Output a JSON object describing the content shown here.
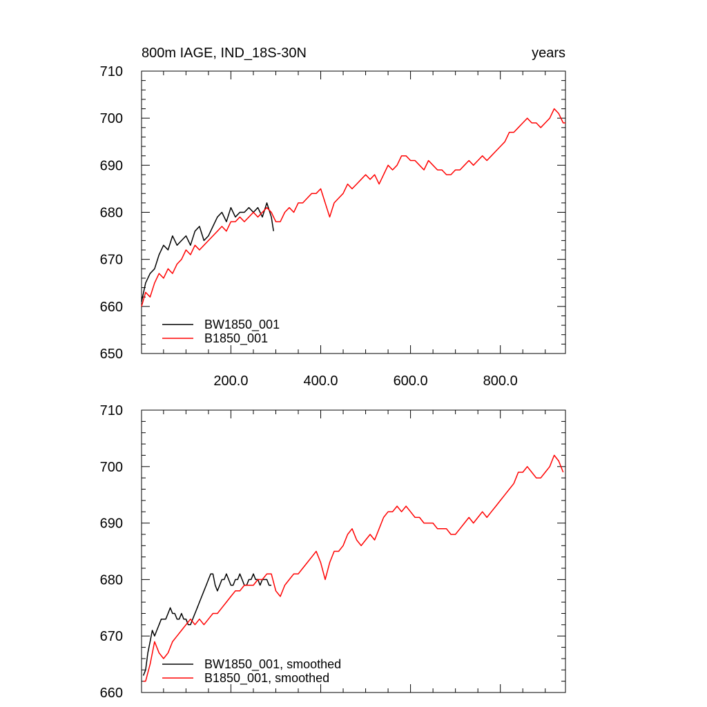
{
  "colors": {
    "BW1850_001": "#000000",
    "B1850_001": "#ff0000"
  },
  "chart_data": [
    {
      "type": "line",
      "title_left": "800m IAGE, IND_18S-30N",
      "title_right": "years",
      "xlim": [
        1,
        945
      ],
      "ylim": [
        650,
        710
      ],
      "x_ticks": [
        200,
        400,
        600,
        800
      ],
      "x_tick_labels": [
        "200.0",
        "400.0",
        "600.0",
        "800.0"
      ],
      "y_ticks": [
        650,
        660,
        670,
        680,
        690,
        700,
        710
      ],
      "y_tick_labels": [
        "650",
        "660",
        "670",
        "680",
        "690",
        "700",
        "710"
      ],
      "legend_position": "bottom-left",
      "grid": false,
      "series": [
        {
          "name": "BW1850_001",
          "color": "#000000",
          "x": [
            1,
            10,
            20,
            30,
            40,
            50,
            60,
            70,
            80,
            90,
            100,
            110,
            120,
            130,
            140,
            150,
            160,
            170,
            180,
            190,
            200,
            210,
            220,
            230,
            240,
            250,
            260,
            270,
            280,
            290,
            295
          ],
          "y": [
            661,
            665,
            667,
            668,
            671,
            673,
            672,
            675,
            673,
            674,
            675,
            673,
            676,
            677,
            674,
            675,
            677,
            679,
            680,
            678,
            681,
            679,
            680,
            680,
            681,
            680,
            681,
            679,
            682,
            679,
            676
          ]
        },
        {
          "name": "B1850_001",
          "color": "#ff0000",
          "x": [
            1,
            10,
            20,
            30,
            40,
            50,
            60,
            70,
            80,
            90,
            100,
            110,
            120,
            130,
            140,
            150,
            160,
            170,
            180,
            190,
            200,
            210,
            220,
            230,
            240,
            250,
            260,
            270,
            280,
            290,
            300,
            310,
            320,
            330,
            340,
            350,
            360,
            370,
            380,
            390,
            400,
            410,
            420,
            430,
            440,
            450,
            460,
            470,
            480,
            490,
            500,
            510,
            520,
            530,
            540,
            550,
            560,
            570,
            580,
            590,
            600,
            610,
            620,
            630,
            640,
            650,
            660,
            670,
            680,
            690,
            700,
            710,
            720,
            730,
            740,
            750,
            760,
            770,
            780,
            790,
            800,
            810,
            820,
            830,
            840,
            850,
            860,
            870,
            880,
            890,
            900,
            910,
            920,
            930,
            940,
            945
          ],
          "y": [
            660,
            663,
            662,
            665,
            667,
            666,
            668,
            667,
            669,
            670,
            672,
            671,
            673,
            672,
            673,
            674,
            675,
            676,
            677,
            676,
            678,
            678,
            679,
            678,
            679,
            680,
            679,
            680,
            681,
            680,
            678,
            678,
            680,
            681,
            680,
            682,
            682,
            683,
            684,
            684,
            685,
            682,
            679,
            682,
            683,
            684,
            686,
            685,
            686,
            687,
            688,
            687,
            688,
            686,
            688,
            690,
            689,
            690,
            692,
            692,
            691,
            691,
            690,
            689,
            691,
            690,
            689,
            689,
            688,
            688,
            689,
            689,
            690,
            691,
            690,
            691,
            692,
            691,
            692,
            693,
            694,
            695,
            697,
            697,
            698,
            699,
            700,
            699,
            699,
            698,
            699,
            700,
            702,
            701,
            699,
            699
          ]
        }
      ]
    },
    {
      "type": "line",
      "xlim": [
        1,
        945
      ],
      "ylim": [
        660,
        710
      ],
      "x_ticks": [
        200,
        400,
        600,
        800
      ],
      "y_ticks": [
        660,
        670,
        680,
        690,
        700,
        710
      ],
      "y_tick_labels": [
        "660",
        "670",
        "680",
        "690",
        "700",
        "710"
      ],
      "legend_position": "bottom-left",
      "grid": false,
      "series": [
        {
          "name": "BW1850_001, smoothed",
          "color": "#000000",
          "x": [
            5,
            10,
            15,
            20,
            25,
            30,
            35,
            40,
            45,
            50,
            55,
            60,
            65,
            70,
            75,
            80,
            85,
            90,
            95,
            100,
            105,
            110,
            115,
            120,
            125,
            130,
            135,
            140,
            145,
            150,
            155,
            160,
            165,
            170,
            175,
            180,
            185,
            190,
            195,
            200,
            205,
            210,
            215,
            220,
            225,
            230,
            235,
            240,
            245,
            250,
            255,
            260,
            265,
            270,
            275,
            280,
            285,
            290
          ],
          "y": [
            663,
            664,
            667,
            669,
            671,
            670,
            671,
            672,
            673,
            673,
            673,
            674,
            675,
            674,
            674,
            673,
            673,
            674,
            673,
            673,
            672,
            672,
            673,
            674,
            675,
            676,
            677,
            678,
            679,
            680,
            681,
            681,
            679,
            678,
            679,
            680,
            680,
            681,
            680,
            679,
            679,
            680,
            680,
            681,
            680,
            679,
            679,
            680,
            680,
            681,
            680,
            680,
            679,
            680,
            680,
            680,
            679,
            679
          ]
        },
        {
          "name": "B1850_001, smoothed",
          "color": "#ff0000",
          "x": [
            5,
            10,
            20,
            30,
            40,
            50,
            60,
            70,
            80,
            90,
            100,
            110,
            120,
            130,
            140,
            150,
            160,
            170,
            180,
            190,
            200,
            210,
            220,
            230,
            240,
            250,
            260,
            270,
            280,
            290,
            300,
            310,
            320,
            330,
            340,
            350,
            360,
            370,
            380,
            390,
            400,
            410,
            420,
            430,
            440,
            450,
            460,
            470,
            480,
            490,
            500,
            510,
            520,
            530,
            540,
            550,
            560,
            570,
            580,
            590,
            600,
            610,
            620,
            630,
            640,
            650,
            660,
            670,
            680,
            690,
            700,
            710,
            720,
            730,
            740,
            750,
            760,
            770,
            780,
            790,
            800,
            810,
            820,
            830,
            840,
            850,
            860,
            870,
            880,
            890,
            900,
            910,
            920,
            930,
            940
          ],
          "y": [
            662,
            662,
            665,
            669,
            667,
            666,
            667,
            669,
            670,
            671,
            672,
            673,
            672,
            673,
            672,
            673,
            674,
            674,
            675,
            676,
            677,
            678,
            678,
            679,
            679,
            679,
            680,
            680,
            681,
            681,
            678,
            677,
            679,
            680,
            681,
            681,
            682,
            683,
            684,
            685,
            683,
            680,
            683,
            685,
            685,
            686,
            688,
            689,
            687,
            686,
            687,
            688,
            687,
            689,
            691,
            692,
            692,
            693,
            692,
            693,
            692,
            691,
            691,
            690,
            690,
            690,
            689,
            689,
            689,
            688,
            688,
            689,
            690,
            691,
            690,
            691,
            692,
            691,
            692,
            693,
            694,
            695,
            696,
            697,
            699,
            699,
            700,
            699,
            698,
            698,
            699,
            700,
            702,
            701,
            699
          ]
        }
      ]
    }
  ]
}
